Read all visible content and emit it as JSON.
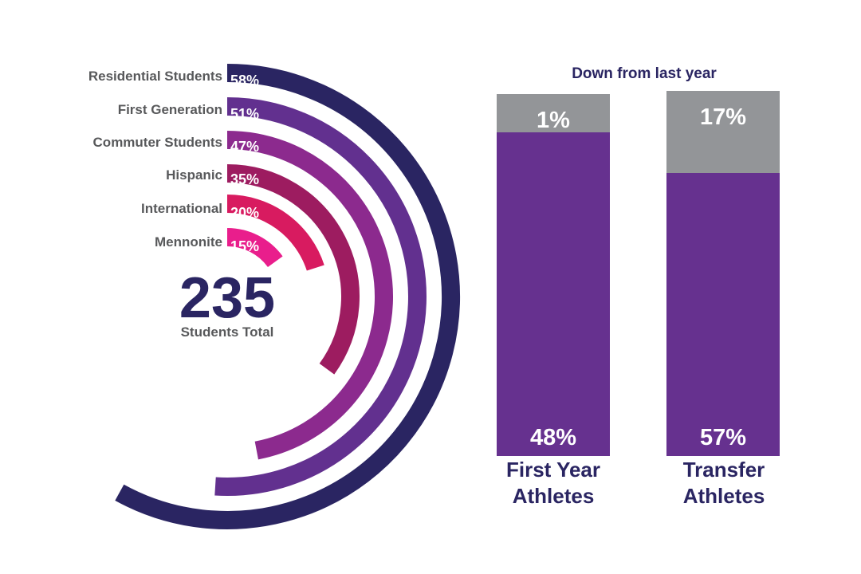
{
  "chart_data": [
    {
      "type": "radial-bar",
      "categories": [
        "Residential Students",
        "First Generation",
        "Commuter Students",
        "Hispanic",
        "International",
        "Mennonite"
      ],
      "values": [
        58,
        51,
        47,
        35,
        20,
        15
      ],
      "value_labels": [
        "58%",
        "51%",
        "47%",
        "35%",
        "20%",
        "15%"
      ],
      "colors": [
        "#2a2562",
        "#62308f",
        "#8c2a8e",
        "#9d1c60",
        "#d81b60",
        "#e91e8c"
      ],
      "total": {
        "value": "235",
        "label": "Students Total"
      }
    },
    {
      "type": "bar",
      "subtitle": "Down from last year",
      "categories": [
        "First Year Athletes",
        "Transfer Athletes"
      ],
      "category_lines": [
        [
          "First Year",
          "Athletes"
        ],
        [
          "Transfer",
          "Athletes"
        ]
      ],
      "series": [
        {
          "values": [
            48,
            57
          ],
          "labels": [
            "48%",
            "57%"
          ],
          "color": "#66318f"
        },
        {
          "values": [
            1,
            17
          ],
          "labels": [
            "1%",
            "17%"
          ],
          "color": "#939598"
        }
      ]
    }
  ],
  "colors": {
    "title_text": "#2a2562",
    "label_text": "#58595b",
    "bar_label_text": "#ffffff"
  }
}
